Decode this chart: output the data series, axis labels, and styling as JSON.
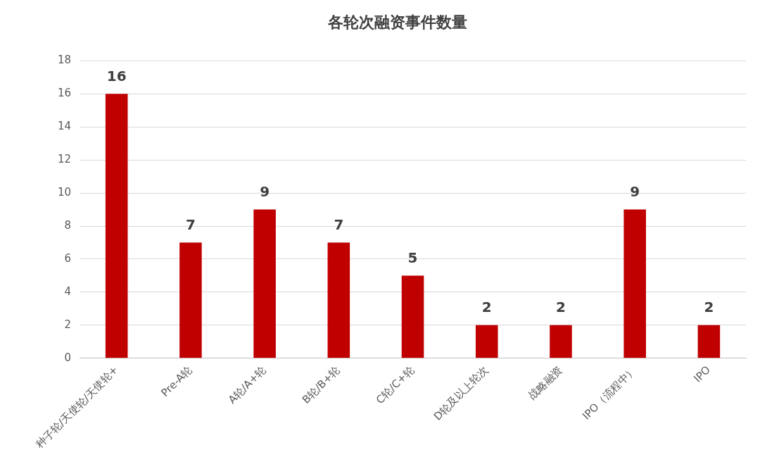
{
  "chart_data": {
    "type": "bar",
    "title": "各轮次融资事件数量",
    "categories": [
      "种子轮/天使轮/天使轮+",
      "Pre-A轮",
      "A轮/A+轮",
      "B轮/B+轮",
      "C轮/C+轮",
      "D轮及以上轮次",
      "战略融资",
      "IPO（流程中）",
      "IPO"
    ],
    "values": [
      16,
      7,
      9,
      7,
      5,
      2,
      2,
      9,
      2
    ],
    "color": "#c00000",
    "ylim": [
      0,
      18
    ],
    "yticks": [
      0,
      2,
      4,
      6,
      8,
      10,
      12,
      14,
      16,
      18
    ],
    "grid": "y",
    "data_labels": true
  }
}
